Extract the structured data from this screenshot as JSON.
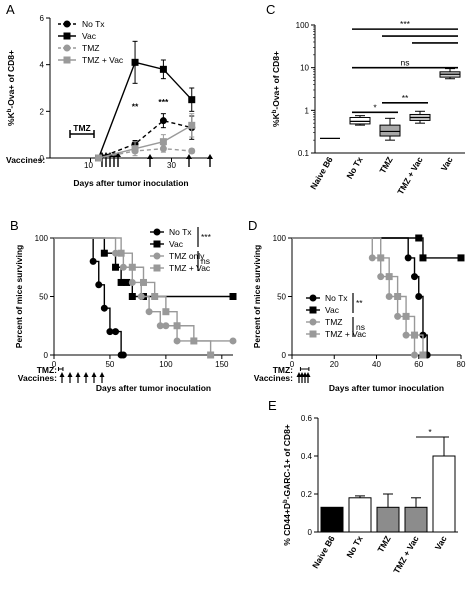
{
  "chart_data": [
    {
      "panel": "A",
      "type": "line",
      "ylabel": "%Kb-Ova+ of CD8+",
      "xlabel": "Days after tumor inoculation",
      "xlim": [
        0,
        40
      ],
      "ylim": [
        0,
        6
      ],
      "xticks": [
        10,
        30
      ],
      "yticks": [
        0,
        2,
        4,
        6
      ],
      "tmz_label": "TMZ",
      "vaccines_label": "Vaccines:",
      "tmz_days": [
        4,
        8
      ],
      "vaccine_days": [
        12,
        13,
        14,
        15,
        16,
        21,
        28,
        35
      ],
      "annotations": [
        {
          "text": "**",
          "x": 21,
          "y": 2.2
        },
        {
          "text": "***",
          "x": 28,
          "y": 2.4
        }
      ],
      "legend": "top-left",
      "series": [
        {
          "name": "No Tx",
          "color": "#000000",
          "dash": true,
          "marker": "circle",
          "x": [
            12,
            21,
            28,
            35
          ],
          "y": [
            0.0,
            0.6,
            1.6,
            1.3
          ],
          "err": [
            0.0,
            0.15,
            0.3,
            0.5
          ]
        },
        {
          "name": "Vac",
          "color": "#000000",
          "dash": false,
          "marker": "square",
          "x": [
            12,
            21,
            28,
            35
          ],
          "y": [
            0.0,
            4.1,
            3.8,
            2.5
          ],
          "err": [
            0.0,
            0.9,
            0.4,
            0.5
          ]
        },
        {
          "name": "TMZ",
          "color": "#9a9a9a",
          "dash": true,
          "marker": "circle",
          "x": [
            12,
            21,
            28,
            35
          ],
          "y": [
            0.0,
            0.3,
            0.4,
            0.3
          ],
          "err": [
            0.0,
            0.1,
            0.15,
            0.1
          ]
        },
        {
          "name": "TMZ + Vac",
          "color": "#9a9a9a",
          "dash": false,
          "marker": "square",
          "x": [
            12,
            21,
            28,
            35
          ],
          "y": [
            0.0,
            0.4,
            0.7,
            1.4
          ],
          "err": [
            0.0,
            0.3,
            0.3,
            0.5
          ]
        }
      ]
    },
    {
      "panel": "C",
      "type": "box",
      "ylabel": "%Kb-Ova+ of CD8+",
      "yscale": "log",
      "ylim": [
        0.1,
        100
      ],
      "ytick_labels": [
        "0.1",
        "1",
        "10",
        "100"
      ],
      "ytick_values": [
        0.1,
        1,
        10,
        100
      ],
      "categories": [
        "Naive B6",
        "No Tx",
        "TMZ",
        "TMZ + Vac",
        "Vac"
      ],
      "boxes": [
        {
          "min": 0.22,
          "q1": 0.22,
          "median": 0.22,
          "q3": 0.22,
          "max": 0.22,
          "color": "#ffffff"
        },
        {
          "min": 0.45,
          "q1": 0.48,
          "median": 0.55,
          "q3": 0.68,
          "max": 0.75,
          "color": "#ffffff"
        },
        {
          "min": 0.2,
          "q1": 0.25,
          "median": 0.32,
          "q3": 0.45,
          "max": 0.65,
          "color": "#a8a8a8"
        },
        {
          "min": 0.5,
          "q1": 0.58,
          "median": 0.68,
          "q3": 0.8,
          "max": 0.95,
          "color": "#d0d0d0"
        },
        {
          "min": 5.5,
          "q1": 6.0,
          "median": 7.0,
          "q3": 8.0,
          "max": 9.5,
          "color": "#d0d0d0"
        }
      ],
      "significance": [
        {
          "from": 1,
          "to": 4,
          "text": "***",
          "y": 80
        },
        {
          "from": 2,
          "to": 4,
          "text": "",
          "y": 55
        },
        {
          "from": 3,
          "to": 4,
          "text": "",
          "y": 38
        },
        {
          "from": 1,
          "to": 4,
          "text": "ns",
          "y": 10
        },
        {
          "from": 2,
          "to": 3,
          "text": "**",
          "y": 1.5
        },
        {
          "from": 1,
          "to": 2,
          "text": "*",
          "y": 0.9
        }
      ]
    },
    {
      "panel": "B",
      "type": "line",
      "ylabel": "Percent of mice surviving",
      "xlabel": "Days after tumor inoculation",
      "xlim": [
        0,
        160
      ],
      "ylim": [
        0,
        100
      ],
      "xticks": [
        0,
        50,
        100,
        150
      ],
      "yticks": [
        0,
        50,
        100
      ],
      "tmz_label": "TMZ:",
      "vaccines_label": "Vaccines:",
      "tmz_days": [
        4,
        8
      ],
      "vaccine_days": [
        12,
        19,
        26,
        33,
        40,
        47
      ],
      "legend": "top-right",
      "stats": [
        {
          "text": "***",
          "series": [
            "No Tx",
            "Vac"
          ]
        },
        {
          "text": "ns",
          "series": [
            "TMZ only",
            "TMZ + Vac"
          ]
        }
      ],
      "series": [
        {
          "name": "No Tx",
          "color": "#000000",
          "marker": "circle",
          "x": [
            0,
            35,
            40,
            45,
            50,
            55,
            60,
            62
          ],
          "y": [
            100,
            80,
            60,
            40,
            20,
            20,
            0,
            0
          ]
        },
        {
          "name": "Vac",
          "color": "#000000",
          "marker": "square",
          "x": [
            0,
            45,
            55,
            60,
            65,
            70,
            80,
            160
          ],
          "y": [
            100,
            87,
            75,
            62,
            62,
            50,
            50,
            50
          ]
        },
        {
          "name": "TMZ only",
          "color": "#999999",
          "marker": "circle",
          "x": [
            0,
            55,
            62,
            70,
            78,
            85,
            95,
            100,
            110,
            160
          ],
          "y": [
            100,
            87,
            75,
            62,
            50,
            37,
            25,
            25,
            12,
            12
          ]
        },
        {
          "name": "TMZ + Vac",
          "color": "#999999",
          "marker": "square",
          "x": [
            0,
            60,
            70,
            80,
            90,
            100,
            110,
            125,
            140
          ],
          "y": [
            100,
            87,
            75,
            62,
            50,
            37,
            25,
            12,
            0
          ]
        }
      ]
    },
    {
      "panel": "D",
      "type": "line",
      "ylabel": "Percent of mice surviving",
      "xlabel": "Days after tumor inoculation",
      "xlim": [
        0,
        80
      ],
      "ylim": [
        0,
        100
      ],
      "xticks": [
        0,
        20,
        40,
        60,
        80
      ],
      "yticks": [
        0,
        50,
        100
      ],
      "tmz_label": "TMZ:",
      "vaccines_label": "Vaccines:",
      "tmz_days": [
        4,
        8
      ],
      "vaccine_days": [
        7,
        8,
        9,
        10
      ],
      "legend": "lower-left",
      "stats": [
        {
          "text": "**",
          "series": [
            "No Tx",
            "Vac"
          ]
        },
        {
          "text": "ns",
          "series": [
            "TMZ",
            "TMZ + Vac"
          ]
        }
      ],
      "series": [
        {
          "name": "No Tx",
          "color": "#000000",
          "marker": "circle",
          "x": [
            0,
            55,
            58,
            60,
            62,
            64
          ],
          "y": [
            100,
            83,
            67,
            50,
            17,
            0
          ]
        },
        {
          "name": "Vac",
          "color": "#000000",
          "marker": "square",
          "x": [
            0,
            60,
            62,
            80
          ],
          "y": [
            100,
            100,
            83,
            83
          ]
        },
        {
          "name": "TMZ",
          "color": "#999999",
          "marker": "circle",
          "x": [
            0,
            38,
            42,
            46,
            50,
            54,
            58
          ],
          "y": [
            100,
            83,
            67,
            50,
            33,
            17,
            0
          ]
        },
        {
          "name": "TMZ + Vac",
          "color": "#999999",
          "marker": "square",
          "x": [
            0,
            42,
            46,
            50,
            54,
            58,
            62
          ],
          "y": [
            100,
            83,
            67,
            50,
            33,
            17,
            0
          ]
        }
      ]
    },
    {
      "panel": "E",
      "type": "bar",
      "ylabel": "% CD44+Db-GARC-1+ of CD8+",
      "ylim": [
        0,
        0.6
      ],
      "yticks": [
        0,
        0.2,
        0.4,
        0.6
      ],
      "ytick_labels": [
        "0",
        "0.2",
        "0.4",
        "0.6"
      ],
      "categories": [
        "Naive B6",
        "No Tx",
        "TMZ",
        "TMZ + Vac",
        "Vac"
      ],
      "values": [
        0.13,
        0.18,
        0.13,
        0.13,
        0.4
      ],
      "errors": [
        0,
        0.01,
        0.07,
        0.05,
        0.1
      ],
      "colors": [
        "#000000",
        "#ffffff",
        "#8c8c8c",
        "#8c8c8c",
        "#ffffff"
      ],
      "significance": [
        {
          "from": 3,
          "to": 4,
          "text": "*",
          "y": 0.5
        }
      ]
    }
  ]
}
